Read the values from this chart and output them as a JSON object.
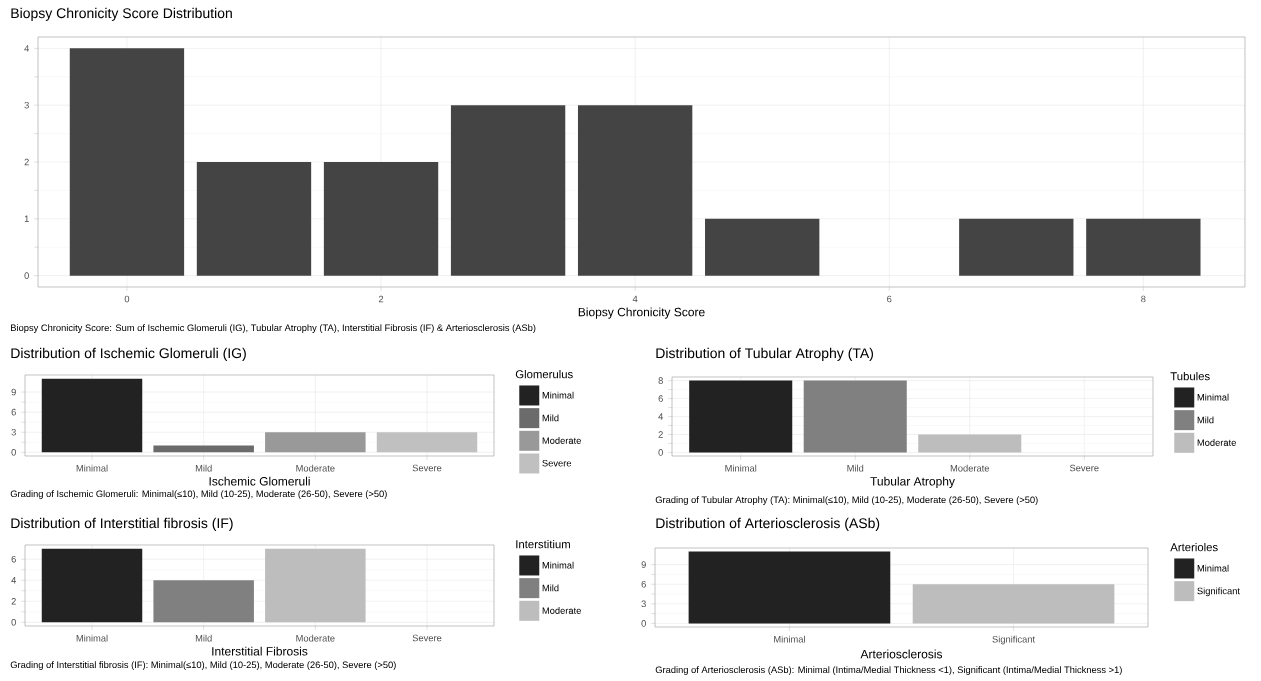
{
  "chart_data": [
    {
      "type": "bar",
      "title": "Biopsy Chronicity Score Distribution",
      "xlabel": "Biopsy Chronicity Score",
      "x": [
        0,
        1,
        2,
        3,
        4,
        5,
        7,
        8
      ],
      "values": [
        4,
        2,
        2,
        3,
        3,
        1,
        1,
        1
      ],
      "color": "#444444",
      "xlim": [
        -0.7,
        8.8
      ],
      "xticks": [
        0,
        2,
        4,
        6,
        8
      ],
      "ylim": [
        -0.2,
        4.2
      ],
      "yticks": [
        0,
        1,
        2,
        3,
        4
      ],
      "grid": true,
      "annotations": [
        "Biopsy Chronicity Score: Sum of Ischemic Glomeruli (IG), Tubular Atrophy (TA), Interstitial Fibrosis (IF) & Arteriosclerosis (ASb)"
      ]
    },
    {
      "type": "bar",
      "title": "Distribution of Ischemic Glomeruli (IG)",
      "xlabel": "Ischemic Glomeruli",
      "categories": [
        "Minimal",
        "Mild",
        "Moderate",
        "Severe"
      ],
      "series": [
        {
          "name": "Minimal",
          "color": "#222222",
          "values": [
            11,
            null,
            null,
            null
          ]
        },
        {
          "name": "Mild",
          "color": "#6b6b6b",
          "values": [
            null,
            1,
            null,
            null
          ]
        },
        {
          "name": "Moderate",
          "color": "#999999",
          "values": [
            null,
            null,
            3,
            null
          ]
        },
        {
          "name": "Severe",
          "color": "#c0c0c0",
          "values": [
            null,
            null,
            null,
            3
          ]
        }
      ],
      "ylim": [
        -0.55,
        11.55
      ],
      "yticks": [
        0,
        3,
        6,
        9
      ],
      "grid": true,
      "legend": "right",
      "legend_title": "Glomerulus",
      "annotations": [
        "Grading of Ischemic Glomeruli: Minimal(≤10), Mild (10-25), Moderate (26-50), Severe (>50)"
      ]
    },
    {
      "type": "bar",
      "title": "Distribution of Tubular Atrophy (TA)",
      "xlabel": "Tubular Atrophy",
      "categories": [
        "Minimal",
        "Mild",
        "Moderate",
        "Severe"
      ],
      "series": [
        {
          "name": "Minimal",
          "color": "#222222",
          "values": [
            8,
            null,
            null,
            null
          ]
        },
        {
          "name": "Mild",
          "color": "#808080",
          "values": [
            null,
            8,
            null,
            null
          ]
        },
        {
          "name": "Moderate",
          "color": "#bdbdbd",
          "values": [
            null,
            null,
            2,
            null
          ]
        }
      ],
      "ylim": [
        -0.4,
        8.4
      ],
      "yticks": [
        0,
        2,
        4,
        6,
        8
      ],
      "grid": true,
      "legend": "right",
      "legend_title": "Tubules",
      "annotations": [
        "Grading of Tubular Atrophy (TA): Minimal(≤10), Mild (10-25), Moderate (26-50), Severe (>50)"
      ]
    },
    {
      "type": "bar",
      "title": "Distribution of Interstitial fibrosis (IF)",
      "xlabel": "Interstitial Fibrosis",
      "categories": [
        "Minimal",
        "Mild",
        "Moderate",
        "Severe"
      ],
      "series": [
        {
          "name": "Minimal",
          "color": "#222222",
          "values": [
            7,
            null,
            null,
            null
          ]
        },
        {
          "name": "Mild",
          "color": "#808080",
          "values": [
            null,
            4,
            null,
            null
          ]
        },
        {
          "name": "Moderate",
          "color": "#bdbdbd",
          "values": [
            null,
            null,
            7,
            null
          ]
        }
      ],
      "ylim": [
        -0.35,
        7.35
      ],
      "yticks": [
        0,
        2,
        4,
        6
      ],
      "grid": true,
      "legend": "right",
      "legend_title": "Interstitium",
      "annotations": [
        "Grading of Interstitial fibrosis (IF): Minimal(≤10), Mild (10-25), Moderate (26-50), Severe (>50)"
      ]
    },
    {
      "type": "bar",
      "title": "Distribution of Arteriosclerosis (ASb)",
      "xlabel": "Arteriosclerosis",
      "categories": [
        "Minimal",
        "Significant"
      ],
      "series": [
        {
          "name": "Minimal",
          "color": "#222222",
          "values": [
            11,
            null
          ]
        },
        {
          "name": "Significant",
          "color": "#bdbdbd",
          "values": [
            null,
            6
          ]
        }
      ],
      "ylim": [
        -0.55,
        11.55
      ],
      "yticks": [
        0,
        3,
        6,
        9
      ],
      "grid": true,
      "legend": "right",
      "legend_title": "Arterioles",
      "annotations": [
        "Grading of Arteriosclerosis (ASb): Minimal (Intima/Medial Thickness <1), Significant (Intima/Medial Thickness >1)"
      ]
    }
  ]
}
